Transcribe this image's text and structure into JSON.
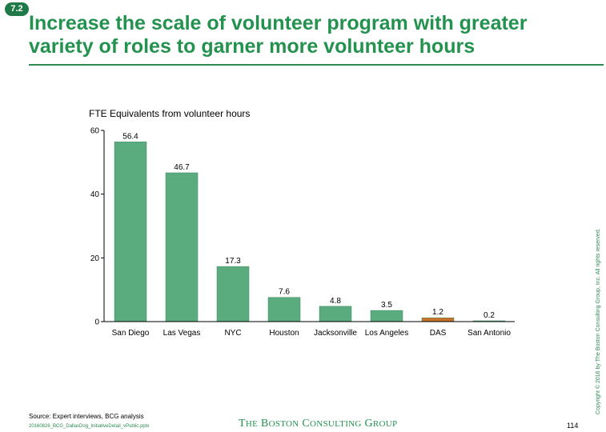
{
  "header": {
    "badge": "7.2",
    "title": "Increase the scale of volunteer program with greater variety of roles to garner more volunteer hours"
  },
  "chart_data": {
    "type": "bar",
    "title": "FTE Equivalents from volunteer hours",
    "categories": [
      "San Diego",
      "Las Vegas",
      "NYC",
      "Houston",
      "Jacksonville",
      "Los Angeles",
      "DAS",
      "San Antonio"
    ],
    "values": [
      56.4,
      46.7,
      17.3,
      7.6,
      4.8,
      3.5,
      1.2,
      0.2
    ],
    "value_labels": [
      "56.4",
      "46.7",
      "17.3",
      "7.6",
      "4.8",
      "3.5",
      "1.2",
      "0.2"
    ],
    "colors": [
      "#5aab7e",
      "#5aab7e",
      "#5aab7e",
      "#5aab7e",
      "#5aab7e",
      "#5aab7e",
      "#c9722a",
      "#5aab7e"
    ],
    "yticks": [
      0,
      20,
      40,
      60
    ],
    "ylim": [
      0,
      60
    ],
    "xlabel": "",
    "ylabel": "",
    "grid": false,
    "legend": "none"
  },
  "footer": {
    "copyright": "Copyright © 2016 by The Boston Consulting Group, Inc. All rights reserved.",
    "source": "Source: Expert interviews, BCG analysis",
    "filename": "20160826_BCG_DallasDog_InitiativeDetail_vPublic.pptx",
    "logo_text": "THE BOSTON CONSULTING GROUP",
    "page_number": "114"
  }
}
